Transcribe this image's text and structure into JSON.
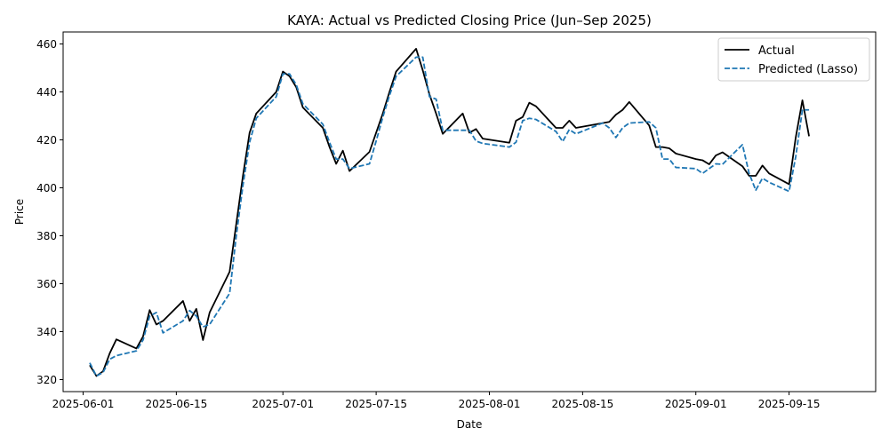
{
  "chart_data": {
    "type": "line",
    "title": "KAYA: Actual vs Predicted Closing Price (Jun–Sep 2025)",
    "xlabel": "Date",
    "ylabel": "Price",
    "xlim": [
      "2025-05-29",
      "2025-09-28"
    ],
    "ylim": [
      315,
      465
    ],
    "x_ticks": [
      "2025-06-01",
      "2025-06-15",
      "2025-07-01",
      "2025-07-15",
      "2025-08-01",
      "2025-08-15",
      "2025-09-01",
      "2025-09-15"
    ],
    "y_ticks": [
      320,
      340,
      360,
      380,
      400,
      420,
      440,
      460
    ],
    "legend_position": "top-right",
    "grid": false,
    "series": [
      {
        "name": "Actual",
        "color": "#000000",
        "style": "solid",
        "points": [
          [
            "2025-06-02",
            326
          ],
          [
            "2025-06-03",
            321.5
          ],
          [
            "2025-06-04",
            323.5
          ],
          [
            "2025-06-05",
            331
          ],
          [
            "2025-06-06",
            336.8
          ],
          [
            "2025-06-09",
            333
          ],
          [
            "2025-06-10",
            338
          ],
          [
            "2025-06-11",
            349
          ],
          [
            "2025-06-12",
            343
          ],
          [
            "2025-06-13",
            344.5
          ],
          [
            "2025-06-16",
            352.8
          ],
          [
            "2025-06-17",
            344.5
          ],
          [
            "2025-06-18",
            349.5
          ],
          [
            "2025-06-19",
            336.5
          ],
          [
            "2025-06-20",
            348
          ],
          [
            "2025-06-23",
            365
          ],
          [
            "2025-06-24",
            385
          ],
          [
            "2025-06-25",
            405
          ],
          [
            "2025-06-26",
            423
          ],
          [
            "2025-06-27",
            431
          ],
          [
            "2025-06-30",
            440
          ],
          [
            "2025-07-01",
            448.5
          ],
          [
            "2025-07-02",
            446.5
          ],
          [
            "2025-07-03",
            442
          ],
          [
            "2025-07-04",
            433.5
          ],
          [
            "2025-07-07",
            425
          ],
          [
            "2025-07-08",
            417
          ],
          [
            "2025-07-09",
            410
          ],
          [
            "2025-07-10",
            415.5
          ],
          [
            "2025-07-11",
            407
          ],
          [
            "2025-07-14",
            415
          ],
          [
            "2025-07-15",
            423
          ],
          [
            "2025-07-16",
            431
          ],
          [
            "2025-07-17",
            440
          ],
          [
            "2025-07-18",
            448.5
          ],
          [
            "2025-07-21",
            458
          ],
          [
            "2025-07-22",
            449
          ],
          [
            "2025-07-23",
            439
          ],
          [
            "2025-07-24",
            431
          ],
          [
            "2025-07-25",
            422.5
          ],
          [
            "2025-07-28",
            431
          ],
          [
            "2025-07-29",
            423
          ],
          [
            "2025-07-30",
            424.5
          ],
          [
            "2025-07-31",
            420.5
          ],
          [
            "2025-08-04",
            418.8
          ],
          [
            "2025-08-05",
            428
          ],
          [
            "2025-08-06",
            429.5
          ],
          [
            "2025-08-07",
            435.5
          ],
          [
            "2025-08-08",
            434
          ],
          [
            "2025-08-11",
            425
          ],
          [
            "2025-08-12",
            425
          ],
          [
            "2025-08-13",
            428
          ],
          [
            "2025-08-14",
            425
          ],
          [
            "2025-08-18",
            427
          ],
          [
            "2025-08-19",
            427.5
          ],
          [
            "2025-08-20",
            430.5
          ],
          [
            "2025-08-21",
            432.5
          ],
          [
            "2025-08-22",
            435.8
          ],
          [
            "2025-08-25",
            426
          ],
          [
            "2025-08-26",
            417
          ],
          [
            "2025-08-27",
            417
          ],
          [
            "2025-08-28",
            416.5
          ],
          [
            "2025-08-29",
            414.3
          ],
          [
            "2025-09-01",
            412
          ],
          [
            "2025-09-02",
            411.5
          ],
          [
            "2025-09-03",
            409.8
          ],
          [
            "2025-09-04",
            413.5
          ],
          [
            "2025-09-05",
            414.8
          ],
          [
            "2025-09-08",
            409
          ],
          [
            "2025-09-09",
            405
          ],
          [
            "2025-09-10",
            405
          ],
          [
            "2025-09-11",
            409.3
          ],
          [
            "2025-09-12",
            406
          ],
          [
            "2025-09-15",
            401.5
          ],
          [
            "2025-09-16",
            421
          ],
          [
            "2025-09-17",
            436.5
          ],
          [
            "2025-09-18",
            421.5
          ]
        ]
      },
      {
        "name": "Predicted (Lasso)",
        "color": "#1f77b4",
        "style": "dashed",
        "points": [
          [
            "2025-06-02",
            327
          ],
          [
            "2025-06-03",
            321.5
          ],
          [
            "2025-06-04",
            323
          ],
          [
            "2025-06-05",
            328.5
          ],
          [
            "2025-06-06",
            330
          ],
          [
            "2025-06-09",
            332
          ],
          [
            "2025-06-10",
            336.5
          ],
          [
            "2025-06-11",
            346.5
          ],
          [
            "2025-06-12",
            348
          ],
          [
            "2025-06-13",
            339.5
          ],
          [
            "2025-06-16",
            344.5
          ],
          [
            "2025-06-17",
            348.8
          ],
          [
            "2025-06-18",
            346.5
          ],
          [
            "2025-06-19",
            342
          ],
          [
            "2025-06-20",
            343
          ],
          [
            "2025-06-23",
            356
          ],
          [
            "2025-06-24",
            380
          ],
          [
            "2025-06-25",
            401
          ],
          [
            "2025-06-26",
            419
          ],
          [
            "2025-06-27",
            429
          ],
          [
            "2025-06-30",
            438
          ],
          [
            "2025-07-01",
            447.5
          ],
          [
            "2025-07-02",
            447.5
          ],
          [
            "2025-07-03",
            443
          ],
          [
            "2025-07-04",
            435
          ],
          [
            "2025-07-07",
            426.5
          ],
          [
            "2025-07-08",
            419
          ],
          [
            "2025-07-09",
            412
          ],
          [
            "2025-07-10",
            412
          ],
          [
            "2025-07-11",
            408
          ],
          [
            "2025-07-14",
            410
          ],
          [
            "2025-07-15",
            419.5
          ],
          [
            "2025-07-16",
            429.5
          ],
          [
            "2025-07-17",
            438.5
          ],
          [
            "2025-07-18",
            446.5
          ],
          [
            "2025-07-21",
            454.5
          ],
          [
            "2025-07-22",
            454.5
          ],
          [
            "2025-07-23",
            438
          ],
          [
            "2025-07-24",
            437
          ],
          [
            "2025-07-25",
            424
          ],
          [
            "2025-07-28",
            424
          ],
          [
            "2025-07-29",
            424
          ],
          [
            "2025-07-30",
            419.5
          ],
          [
            "2025-07-31",
            418.5
          ],
          [
            "2025-08-04",
            417
          ],
          [
            "2025-08-05",
            419
          ],
          [
            "2025-08-06",
            428
          ],
          [
            "2025-08-07",
            429
          ],
          [
            "2025-08-08",
            428.5
          ],
          [
            "2025-08-11",
            423.5
          ],
          [
            "2025-08-12",
            419.3
          ],
          [
            "2025-08-13",
            424.3
          ],
          [
            "2025-08-14",
            422.5
          ],
          [
            "2025-08-18",
            427
          ],
          [
            "2025-08-19",
            425
          ],
          [
            "2025-08-20",
            421
          ],
          [
            "2025-08-21",
            425
          ],
          [
            "2025-08-22",
            427
          ],
          [
            "2025-08-25",
            427.5
          ],
          [
            "2025-08-26",
            425
          ],
          [
            "2025-08-27",
            412
          ],
          [
            "2025-08-28",
            412
          ],
          [
            "2025-08-29",
            408.5
          ],
          [
            "2025-09-01",
            408
          ],
          [
            "2025-09-02",
            406
          ],
          [
            "2025-09-03",
            408
          ],
          [
            "2025-09-04",
            410
          ],
          [
            "2025-09-05",
            409.8
          ],
          [
            "2025-09-08",
            418
          ],
          [
            "2025-09-09",
            406
          ],
          [
            "2025-09-10",
            399
          ],
          [
            "2025-09-11",
            404
          ],
          [
            "2025-09-12",
            402.3
          ],
          [
            "2025-09-15",
            398.5
          ],
          [
            "2025-09-16",
            413
          ],
          [
            "2025-09-17",
            432.5
          ],
          [
            "2025-09-18",
            432.5
          ]
        ]
      }
    ]
  }
}
